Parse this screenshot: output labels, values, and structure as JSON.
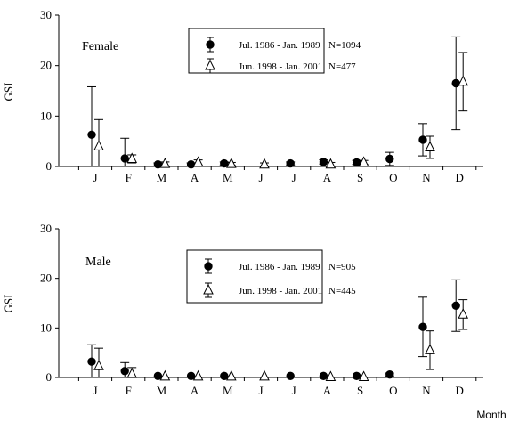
{
  "chart_data": [
    {
      "type": "scatter",
      "panel_label": "Female",
      "ylabel": "GSI",
      "xlabel": "",
      "ylim": [
        0,
        30
      ],
      "yticks": [
        0,
        10,
        20,
        30
      ],
      "categories": [
        "J",
        "F",
        "M",
        "A",
        "M",
        "J",
        "J",
        "A",
        "S",
        "O",
        "N",
        "D"
      ],
      "legend": {
        "placement": "top-center",
        "framed": true
      },
      "series": [
        {
          "name": "Jul. 1986 - Jan. 1989",
          "n_label": "N=1094",
          "marker": "filled-circle",
          "values": [
            6.3,
            1.6,
            0.4,
            0.4,
            0.6,
            null,
            0.6,
            0.9,
            0.8,
            1.5,
            5.3,
            16.5
          ],
          "errors": [
            9.5,
            4.0,
            0.3,
            0.3,
            0.3,
            null,
            0.3,
            0.4,
            0.4,
            1.3,
            3.2,
            9.2
          ]
        },
        {
          "name": "Jun. 1998 - Jan. 2001",
          "n_label": "N=477",
          "marker": "open-triangle",
          "values": [
            4.0,
            1.5,
            0.5,
            0.8,
            0.5,
            0.4,
            null,
            0.4,
            0.8,
            null,
            3.8,
            16.8
          ],
          "errors": [
            5.3,
            0.8,
            0.4,
            0.5,
            0.3,
            0.3,
            null,
            0.4,
            0.4,
            null,
            2.2,
            5.8
          ]
        }
      ]
    },
    {
      "type": "scatter",
      "panel_label": "Male",
      "ylabel": "GSI",
      "xlabel": "Month",
      "ylim": [
        0,
        30
      ],
      "yticks": [
        0,
        10,
        20,
        30
      ],
      "categories": [
        "J",
        "F",
        "M",
        "A",
        "M",
        "J",
        "J",
        "A",
        "S",
        "O",
        "N",
        "D"
      ],
      "legend": {
        "placement": "top-center",
        "framed": true
      },
      "series": [
        {
          "name": "Jul. 1986 - Jan. 1989",
          "n_label": "N=905",
          "marker": "filled-circle",
          "values": [
            3.2,
            1.3,
            0.3,
            0.3,
            0.3,
            null,
            0.3,
            0.3,
            0.3,
            0.6,
            10.2,
            14.5
          ],
          "errors": [
            3.4,
            1.7,
            0.2,
            0.2,
            0.2,
            null,
            0.2,
            0.2,
            0.2,
            0.3,
            6.0,
            5.2
          ]
        },
        {
          "name": "Jun. 1998 - Jan. 2001",
          "n_label": "N=445",
          "marker": "open-triangle",
          "values": [
            2.3,
            0.7,
            0.2,
            0.2,
            0.2,
            0.2,
            null,
            0.1,
            0.1,
            null,
            5.5,
            12.7
          ],
          "errors": [
            3.6,
            1.3,
            0.2,
            0.2,
            0.2,
            0.2,
            null,
            0.1,
            0.1,
            null,
            3.9,
            3.0
          ]
        }
      ]
    }
  ]
}
